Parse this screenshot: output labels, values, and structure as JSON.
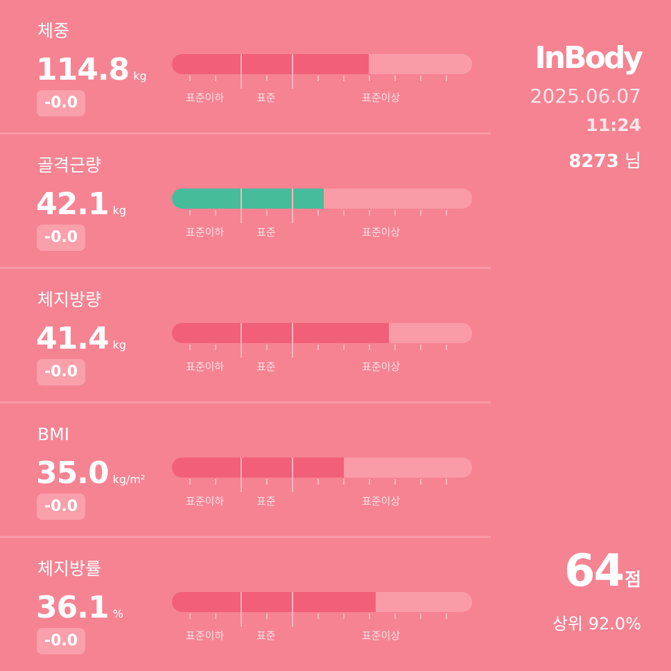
{
  "brand": {
    "logo_text": "InBody"
  },
  "session": {
    "date": "2025.06.07",
    "time": "11:24",
    "user_id": "8273",
    "user_suffix": "님"
  },
  "score": {
    "value": "64",
    "suffix": "점",
    "rank_label": "상위 92.0%"
  },
  "zones": {
    "below": "표준이하",
    "normal": "표준",
    "above": "표준이상"
  },
  "colors": {
    "background": "#f68392",
    "bar_track": "#f99ca8",
    "bar_fill": "#f25f79",
    "bar_fill_good": "#46bc9b"
  },
  "metrics": [
    {
      "label": "체중",
      "value": "114.8",
      "unit": "kg",
      "change": "-0.0",
      "level": 0.655,
      "status": "above"
    },
    {
      "label": "골격근량",
      "value": "42.1",
      "unit": "kg",
      "change": "-0.0",
      "level": 0.505,
      "status": "normal"
    },
    {
      "label": "체지방량",
      "value": "41.4",
      "unit": "kg",
      "change": "-0.0",
      "level": 0.722,
      "status": "above"
    },
    {
      "label": "BMI",
      "value": "35.0",
      "unit": "kg/m²",
      "change": "-0.0",
      "level": 0.573,
      "status": "above"
    },
    {
      "label": "체지방률",
      "value": "36.1",
      "unit": "%",
      "change": "-0.0",
      "level": 0.68,
      "status": "above"
    }
  ]
}
